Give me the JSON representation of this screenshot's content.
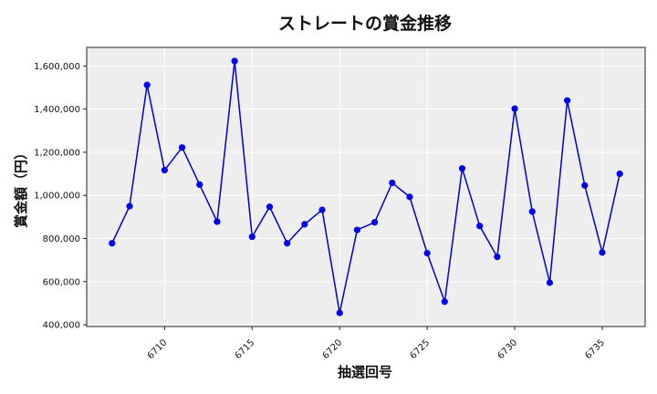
{
  "chart_data": {
    "type": "line",
    "title": "ストレートの賞金推移",
    "xlabel": "抽選回号",
    "ylabel": "賞金額（円）",
    "x": [
      6707,
      6708,
      6709,
      6710,
      6711,
      6712,
      6713,
      6714,
      6715,
      6716,
      6717,
      6718,
      6719,
      6720,
      6721,
      6722,
      6723,
      6724,
      6725,
      6726,
      6727,
      6728,
      6729,
      6730,
      6731,
      6732,
      6733,
      6734,
      6735,
      6736
    ],
    "series": [
      {
        "values": [
          778000,
          950000,
          1512000,
          1117000,
          1222000,
          1050000,
          878000,
          1623000,
          808000,
          947000,
          778000,
          866000,
          933000,
          455000,
          840000,
          875000,
          1058000,
          993000,
          732000,
          507000,
          1125000,
          858000,
          715000,
          1402000,
          925000,
          595000,
          1440000,
          1046000,
          735000,
          1100000
        ]
      }
    ],
    "xticks": [
      6710,
      6715,
      6720,
      6725,
      6730,
      6735
    ],
    "yticks": [
      400000,
      600000,
      800000,
      1000000,
      1200000,
      1400000,
      1600000
    ],
    "ytick_labels": [
      "400,000",
      "600,000",
      "800,000",
      "1,000,000",
      "1,200,000",
      "1,400,000",
      "1,600,000"
    ],
    "xlim": [
      6705.55,
      6737.45
    ],
    "ylim": [
      392000,
      1686000
    ],
    "grid": true,
    "colors": {
      "line": "#0000cc",
      "marker": "#0000ee",
      "plot_bg": "#eeeeee",
      "grid": "#ffffff"
    }
  }
}
